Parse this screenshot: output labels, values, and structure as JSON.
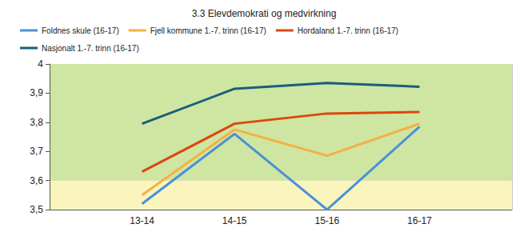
{
  "chart_data": {
    "type": "line",
    "title": "3.3 Elevdemokrati og medvirkning",
    "categories": [
      null,
      "13-14",
      "14-15",
      "15-16",
      "16-17",
      null
    ],
    "series": [
      {
        "name": "Foldnes skule (16-17)",
        "color": "#4a90d9",
        "values": [
          null,
          3.52,
          3.76,
          3.5,
          3.785,
          null
        ]
      },
      {
        "name": "Fjell kommune 1.-7. trinn (16-17)",
        "color": "#f5b042",
        "values": [
          null,
          3.55,
          3.775,
          3.685,
          3.795,
          null
        ]
      },
      {
        "name": "Hordaland 1.-7. trinn (16-17)",
        "color": "#d9480f",
        "values": [
          null,
          3.63,
          3.795,
          3.83,
          3.835,
          null
        ]
      },
      {
        "name": "Nasjonalt 1.-7. trinn (16-17)",
        "color": "#1a5e7a",
        "values": [
          null,
          3.795,
          3.915,
          3.935,
          3.922,
          null
        ]
      }
    ],
    "ylim": [
      3.5,
      4
    ],
    "yticks": [
      {
        "value": 3.5,
        "label": "3,5"
      },
      {
        "value": 3.6,
        "label": "3,6"
      },
      {
        "value": 3.7,
        "label": "3,7"
      },
      {
        "value": 3.8,
        "label": "3,8"
      },
      {
        "value": 3.9,
        "label": "3,9"
      },
      4
    ],
    "bands": [
      {
        "from": 3.5,
        "to": 3.6,
        "color": "#f9f5bd"
      },
      {
        "from": 3.6,
        "to": 4,
        "color": "#cfe5a2"
      }
    ],
    "grid": true,
    "legend": "top"
  }
}
